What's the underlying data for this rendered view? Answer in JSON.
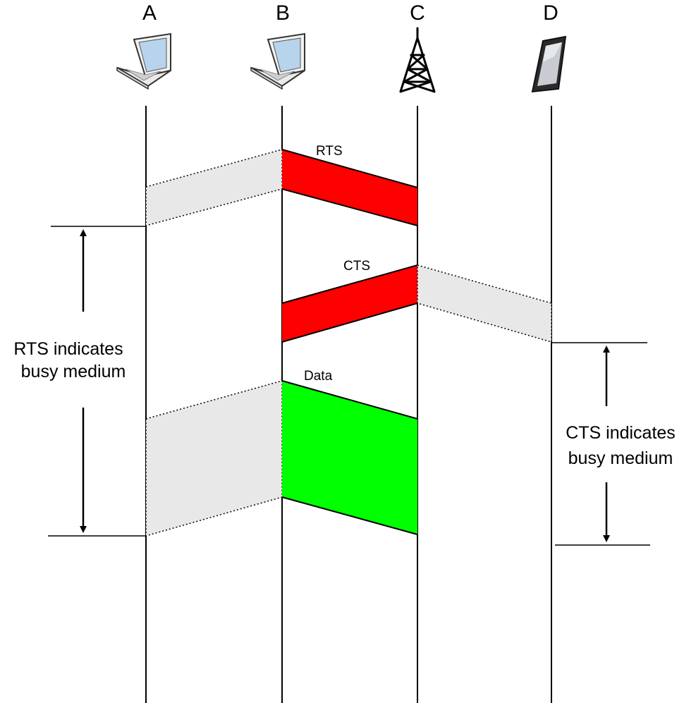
{
  "nodes": [
    {
      "id": "A",
      "label": "A",
      "device": "laptop-icon"
    },
    {
      "id": "B",
      "label": "B",
      "device": "laptop-icon"
    },
    {
      "id": "C",
      "label": "C",
      "device": "cell-tower-icon"
    },
    {
      "id": "D",
      "label": "D",
      "device": "smartphone-icon"
    }
  ],
  "frames": {
    "rts": "RTS",
    "cts": "CTS",
    "data": "Data"
  },
  "annotations": {
    "rts_busy": [
      "RTS indicates",
      "busy medium"
    ],
    "cts_busy": [
      "CTS indicates",
      "busy medium"
    ]
  },
  "colors": {
    "control_frame": "#ff0000",
    "data_frame": "#00ff00",
    "overheard": "#e8e8e8"
  }
}
